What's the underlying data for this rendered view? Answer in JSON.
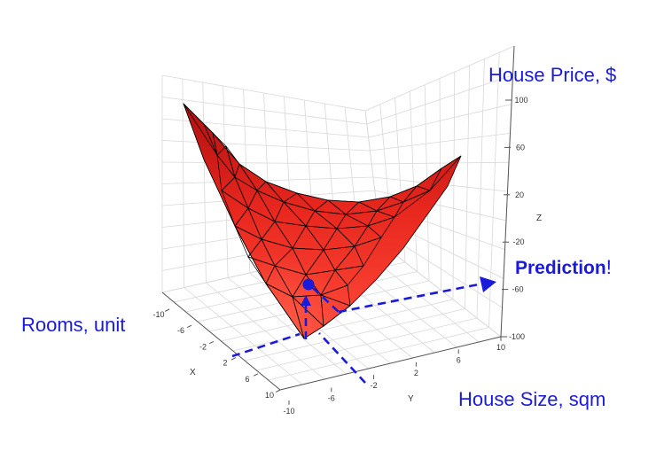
{
  "chart_data": {
    "type": "surface",
    "title": "",
    "grid": true,
    "x_axis": {
      "label": "X",
      "ticks": [
        "-10",
        "-6",
        "-2",
        "2",
        "6",
        "10"
      ],
      "range": [
        -10,
        10
      ]
    },
    "y_axis": {
      "label": "Y",
      "ticks": [
        "-10",
        "-6",
        "-2",
        "2",
        "6",
        "10"
      ],
      "range": [
        -10,
        10
      ]
    },
    "z_axis": {
      "label": "Z",
      "ticks": [
        "100",
        "60",
        "20",
        "-20",
        "-60",
        "-100"
      ],
      "range": [
        -100,
        100
      ]
    },
    "surface_color": "#e8271e",
    "annotations": {
      "x_name": "Rooms, unit",
      "y_name": "House Size, sqm",
      "z_name": "House Price, $",
      "prediction_bold": "Prediction",
      "prediction_suffix": "!",
      "color": "#1a1adb"
    }
  }
}
